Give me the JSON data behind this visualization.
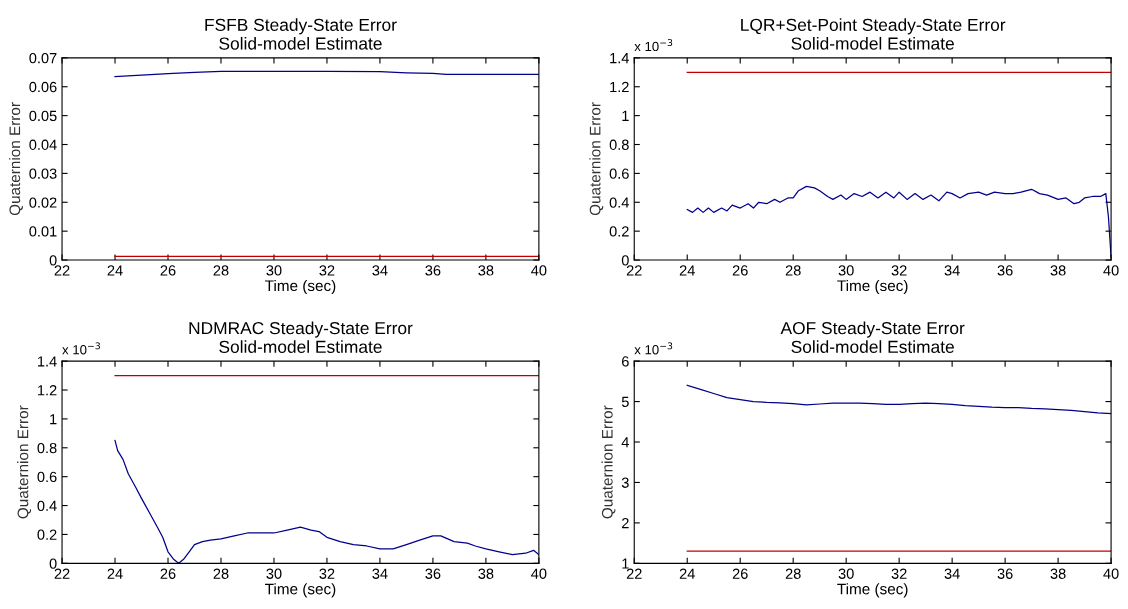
{
  "chart_data": [
    {
      "type": "line",
      "title": "FSFB Steady-State Error\nSolid-model Estimate",
      "xlabel": "Time (sec)",
      "ylabel": "Quaternion Error",
      "xlim": [
        22,
        40
      ],
      "xticks": [
        22,
        24,
        26,
        28,
        30,
        32,
        34,
        36,
        38,
        40
      ],
      "ylim": [
        0,
        0.07
      ],
      "yticks": [
        0,
        0.01,
        0.02,
        0.03,
        0.04,
        0.05,
        0.06,
        0.07
      ],
      "grid": false,
      "series": [
        {
          "color": "#00008b",
          "x": [
            24,
            25,
            26,
            27,
            28,
            30,
            32,
            34,
            35,
            36,
            36.5,
            38,
            40
          ],
          "values": [
            0.0635,
            0.064,
            0.0645,
            0.065,
            0.0653,
            0.0653,
            0.0653,
            0.0652,
            0.0648,
            0.0646,
            0.0643,
            0.0643,
            0.0643
          ]
        },
        {
          "color": "#c00000",
          "x": [
            24,
            40
          ],
          "values": [
            0.0013,
            0.0013
          ]
        }
      ]
    },
    {
      "type": "line",
      "title": "LQR+Set-Point Steady-State Error\nSolid-model Estimate",
      "xlabel": "Time (sec)",
      "ylabel": "Quaternion Error",
      "annotations": [
        "x 10$^{−3}$"
      ],
      "xlim": [
        22,
        40
      ],
      "xticks": [
        22,
        24,
        26,
        28,
        30,
        32,
        34,
        36,
        38,
        40
      ],
      "ylim": [
        0,
        1.4
      ],
      "yticks": [
        0,
        0.2,
        0.4,
        0.6,
        0.8,
        1,
        1.2,
        1.4
      ],
      "grid": false,
      "series": [
        {
          "color": "#00008b",
          "x": [
            24,
            24.2,
            24.4,
            24.6,
            24.8,
            25,
            25.3,
            25.5,
            25.7,
            26,
            26.3,
            26.5,
            26.7,
            27,
            27.3,
            27.5,
            27.8,
            28,
            28.2,
            28.5,
            28.8,
            29,
            29.3,
            29.5,
            29.8,
            30,
            30.3,
            30.6,
            30.9,
            31.2,
            31.5,
            31.8,
            32,
            32.3,
            32.6,
            32.9,
            33.2,
            33.5,
            33.8,
            34,
            34.3,
            34.6,
            35,
            35.3,
            35.6,
            36,
            36.3,
            36.6,
            37,
            37.3,
            37.6,
            38,
            38.3,
            38.6,
            38.8,
            39,
            39.3,
            39.6,
            39.8,
            39.9,
            40
          ],
          "values": [
            0.35,
            0.33,
            0.36,
            0.33,
            0.36,
            0.33,
            0.36,
            0.34,
            0.38,
            0.36,
            0.39,
            0.36,
            0.4,
            0.39,
            0.42,
            0.4,
            0.43,
            0.43,
            0.48,
            0.51,
            0.5,
            0.48,
            0.44,
            0.42,
            0.45,
            0.42,
            0.46,
            0.44,
            0.47,
            0.43,
            0.47,
            0.43,
            0.47,
            0.42,
            0.46,
            0.42,
            0.45,
            0.41,
            0.47,
            0.46,
            0.43,
            0.46,
            0.47,
            0.45,
            0.47,
            0.46,
            0.46,
            0.47,
            0.49,
            0.46,
            0.45,
            0.42,
            0.43,
            0.39,
            0.4,
            0.43,
            0.44,
            0.44,
            0.46,
            0.3,
            0.02
          ]
        },
        {
          "color": "#c00000",
          "x": [
            24,
            40
          ],
          "values": [
            1.3,
            1.3
          ]
        }
      ]
    },
    {
      "type": "line",
      "title": "NDMRAC Steady-State Error\nSolid-model Estimate",
      "xlabel": "Time (sec)",
      "ylabel": "Quaternion Error",
      "annotations": [
        "x 10$^{−3}$"
      ],
      "xlim": [
        22,
        40
      ],
      "xticks": [
        22,
        24,
        26,
        28,
        30,
        32,
        34,
        36,
        38,
        40
      ],
      "ylim": [
        0,
        1.4
      ],
      "yticks": [
        0,
        0.2,
        0.4,
        0.6,
        0.8,
        1,
        1.2,
        1.4
      ],
      "grid": false,
      "series": [
        {
          "color": "#00008b",
          "x": [
            24,
            24.1,
            24.3,
            24.5,
            24.8,
            25,
            25.3,
            25.6,
            25.8,
            26,
            26.2,
            26.4,
            26.6,
            26.8,
            27,
            27.3,
            27.6,
            28,
            28.5,
            29,
            29.5,
            30,
            30.5,
            31,
            31.4,
            31.7,
            32,
            32.5,
            33,
            33.5,
            34,
            34.5,
            35,
            35.5,
            36,
            36.3,
            36.8,
            37.3,
            37.6,
            38,
            38.5,
            39,
            39.5,
            39.8,
            40
          ],
          "values": [
            0.85,
            0.78,
            0.72,
            0.62,
            0.52,
            0.45,
            0.35,
            0.25,
            0.18,
            0.08,
            0.03,
            0.0,
            0.03,
            0.08,
            0.13,
            0.15,
            0.16,
            0.17,
            0.19,
            0.21,
            0.21,
            0.21,
            0.23,
            0.25,
            0.23,
            0.22,
            0.18,
            0.15,
            0.13,
            0.12,
            0.1,
            0.1,
            0.13,
            0.16,
            0.19,
            0.19,
            0.15,
            0.14,
            0.12,
            0.1,
            0.08,
            0.06,
            0.07,
            0.09,
            0.06
          ]
        },
        {
          "color": "#c00000",
          "x": [
            24,
            40
          ],
          "values": [
            1.3,
            1.3
          ]
        }
      ]
    },
    {
      "type": "line",
      "title": "AOF Steady-State Error\nSolid-model Estimate",
      "xlabel": "Time (sec)",
      "ylabel": "Quaternion Error",
      "annotations": [
        "x 10$^{−3}$"
      ],
      "xlim": [
        22,
        40
      ],
      "xticks": [
        22,
        24,
        26,
        28,
        30,
        32,
        34,
        36,
        38,
        40
      ],
      "ylim": [
        1,
        6
      ],
      "yticks": [
        1,
        2,
        3,
        4,
        5,
        6
      ],
      "grid": false,
      "series": [
        {
          "color": "#00008b",
          "x": [
            24,
            24.5,
            25,
            25.5,
            26,
            26.5,
            27,
            27.5,
            28,
            28.5,
            29,
            29.5,
            30,
            30.5,
            31,
            31.5,
            32,
            32.5,
            33,
            33.5,
            34,
            34.5,
            35,
            35.5,
            36,
            36.5,
            37,
            37.5,
            38,
            38.5,
            39,
            39.5,
            40
          ],
          "values": [
            5.4,
            5.3,
            5.2,
            5.1,
            5.05,
            5.0,
            4.98,
            4.97,
            4.95,
            4.92,
            4.94,
            4.96,
            4.96,
            4.96,
            4.95,
            4.93,
            4.93,
            4.95,
            4.96,
            4.95,
            4.93,
            4.9,
            4.88,
            4.86,
            4.85,
            4.85,
            4.83,
            4.82,
            4.8,
            4.78,
            4.75,
            4.72,
            4.7
          ]
        },
        {
          "color": "#c00000",
          "x": [
            24,
            40
          ],
          "values": [
            1.3,
            1.3
          ]
        }
      ]
    }
  ]
}
